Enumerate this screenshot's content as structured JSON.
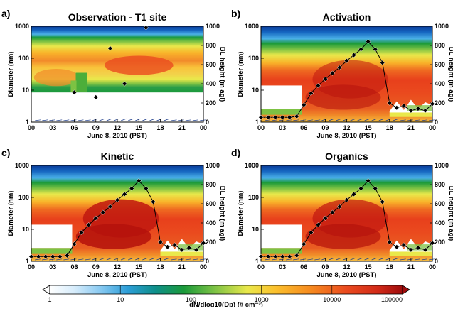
{
  "chart_data": [
    {
      "type": "heatmap",
      "panel_label": "a)",
      "title": "Observation - T1 site",
      "xlabel": "June 8, 2010 (PST)",
      "ylabel": "Diameter (nm)",
      "y2label": "BL height (m agl)",
      "y_scale": "log",
      "ylim": [
        1,
        1000
      ],
      "y2lim": [
        0,
        1000
      ],
      "xlim": [
        0,
        24
      ],
      "bl_height": {
        "x": [
          6,
          9,
          11,
          13,
          16
        ],
        "y": [
          310,
          260,
          770,
          400,
          985
        ]
      },
      "data_start": 5.3
    },
    {
      "type": "heatmap",
      "panel_label": "b)",
      "title": "Activation",
      "xlabel": "June 8, 2010 (PST)",
      "ylabel": "Diameter (nm)",
      "y2label": "BL height (m agl)",
      "y_scale": "log",
      "ylim": [
        1,
        1000
      ],
      "y2lim": [
        0,
        1000
      ],
      "xlim": [
        0,
        24
      ],
      "bl_height": {
        "x": [
          0,
          1,
          2,
          3,
          4,
          5,
          6,
          7,
          8,
          9,
          10,
          11,
          12,
          13,
          14,
          15,
          16,
          17,
          18,
          19,
          20,
          21,
          22,
          23,
          24
        ],
        "y": [
          50,
          50,
          50,
          50,
          50,
          60,
          180,
          300,
          380,
          450,
          510,
          570,
          640,
          700,
          760,
          840,
          760,
          620,
          200,
          150,
          170,
          120,
          140,
          120,
          190
        ]
      }
    },
    {
      "type": "heatmap",
      "panel_label": "c)",
      "title": "Kinetic",
      "xlabel": "June 8, 2010 (PST)",
      "ylabel": "Diameter (nm)",
      "y2label": "BL height (m agl)",
      "y_scale": "log",
      "ylim": [
        1,
        1000
      ],
      "y2lim": [
        0,
        1000
      ],
      "xlim": [
        0,
        24
      ],
      "bl_height": {
        "x": [
          0,
          1,
          2,
          3,
          4,
          5,
          6,
          7,
          8,
          9,
          10,
          11,
          12,
          13,
          14,
          15,
          16,
          17,
          18,
          19,
          20,
          21,
          22,
          23,
          24
        ],
        "y": [
          50,
          50,
          50,
          50,
          50,
          60,
          180,
          300,
          380,
          450,
          510,
          570,
          640,
          700,
          760,
          840,
          760,
          620,
          200,
          150,
          170,
          120,
          140,
          120,
          190
        ]
      }
    },
    {
      "type": "heatmap",
      "panel_label": "d)",
      "title": "Organics",
      "xlabel": "June 8, 2010 (PST)",
      "ylabel": "Diameter (nm)",
      "y2label": "BL height (m agl)",
      "y_scale": "log",
      "ylim": [
        1,
        1000
      ],
      "y2lim": [
        0,
        1000
      ],
      "xlim": [
        0,
        24
      ],
      "bl_height": {
        "x": [
          0,
          1,
          2,
          3,
          4,
          5,
          6,
          7,
          8,
          9,
          10,
          11,
          12,
          13,
          14,
          15,
          16,
          17,
          18,
          19,
          20,
          21,
          22,
          23,
          24
        ],
        "y": [
          50,
          50,
          50,
          50,
          50,
          60,
          180,
          300,
          380,
          450,
          510,
          570,
          640,
          700,
          760,
          840,
          760,
          620,
          200,
          150,
          170,
          120,
          140,
          120,
          190
        ]
      }
    }
  ],
  "axis_ticks": {
    "x": [
      "00",
      "03",
      "06",
      "09",
      "12",
      "15",
      "18",
      "21",
      "00"
    ],
    "y_left": [
      "1",
      "10",
      "100",
      "1000"
    ],
    "y_right": [
      "0",
      "200",
      "400",
      "600",
      "800",
      "1000"
    ]
  },
  "colorbar": {
    "label": "dN/dlog10(Dp) (# cm⁻³)",
    "tick_labels": [
      "1",
      "10",
      "100",
      "1000",
      "10000",
      "100000"
    ],
    "scale": "log",
    "range": [
      1,
      100000
    ],
    "colors": [
      "#ffffff",
      "#cfe8fb",
      "#7cc4f4",
      "#1e9fd6",
      "#0f8c8c",
      "#1b9a3a",
      "#7dc243",
      "#e9e84b",
      "#fbc02d",
      "#f68a1f",
      "#ea4b1f",
      "#d42a1a",
      "#9e0c0c"
    ]
  }
}
